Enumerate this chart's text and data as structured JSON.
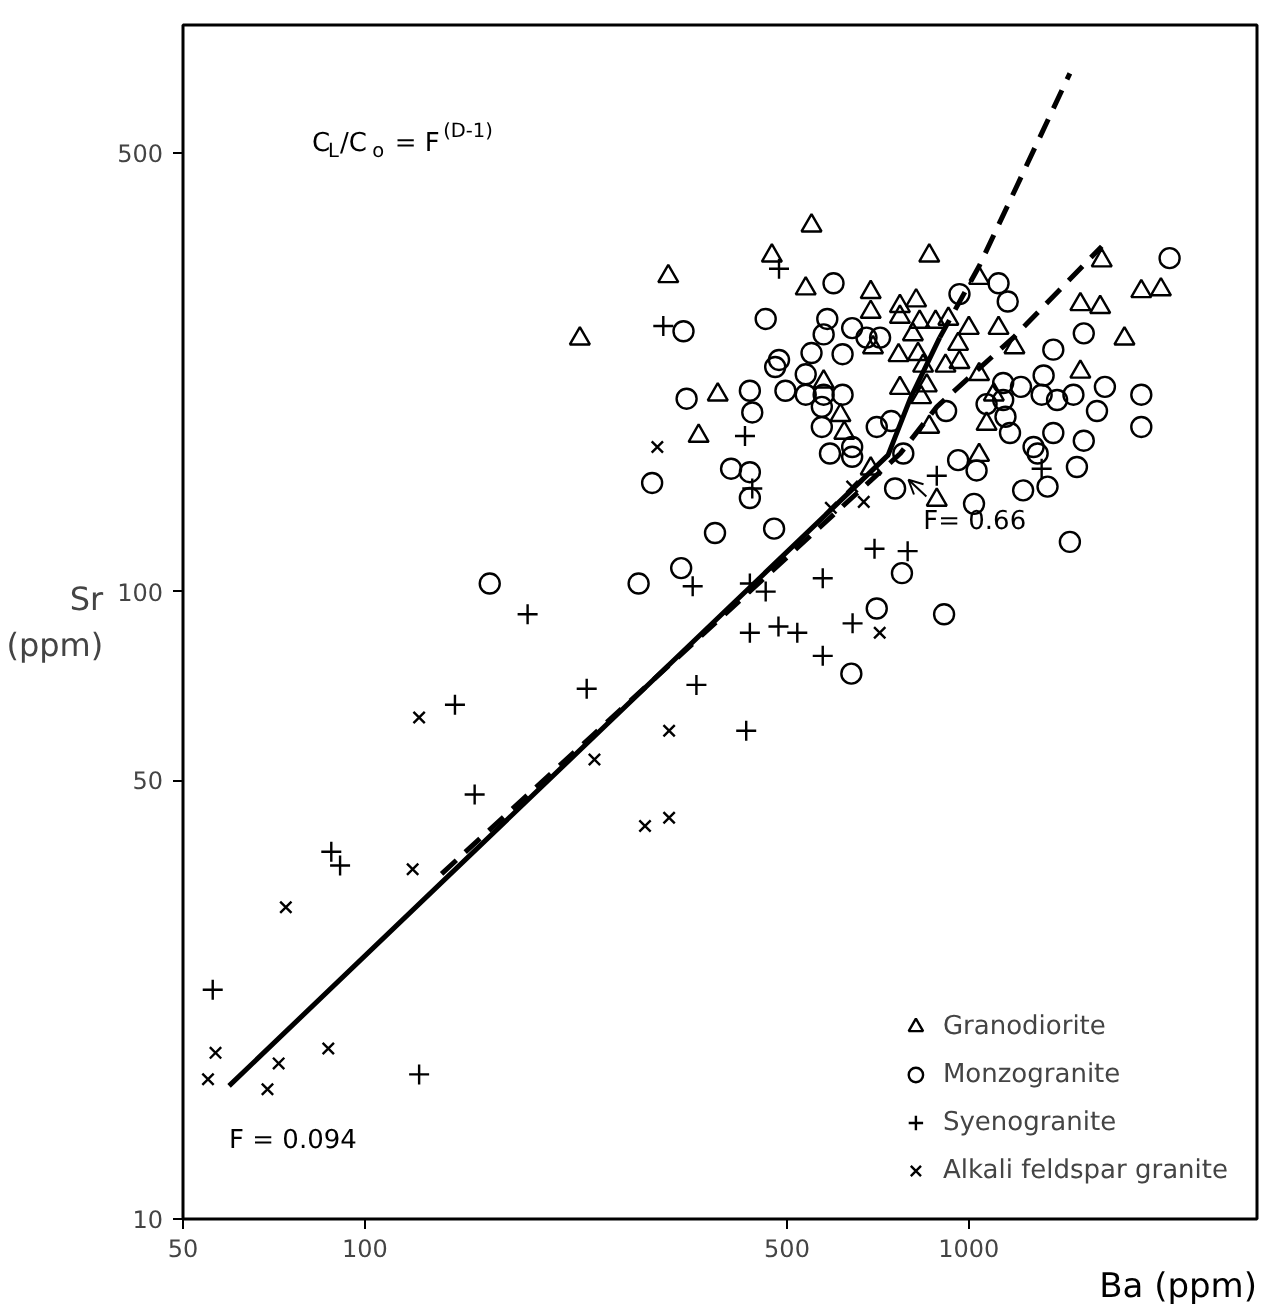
{
  "chart_data": {
    "type": "scatter",
    "xlabel": "Ba (ppm)",
    "ylabel": "Sr (ppm)",
    "log": "xy",
    "xlim": [
      50,
      3000
    ],
    "ylim": [
      10,
      800
    ],
    "xticks": [
      50,
      100,
      500,
      1000
    ],
    "yticks": [
      10,
      50,
      100,
      500
    ],
    "legend": "bottom right",
    "annotations": [
      "C$_{L}$/C$_{o}$ = F$^{(D-1)}$",
      {
        "text": "F= 0.66",
        "x": 779,
        "y": 157
      },
      {
        "text": "F = 0.094",
        "x": 59.6,
        "y": 16.3
      }
    ],
    "series": [
      {
        "name": "Granodiorite",
        "marker": "triangle",
        "color": "#000000",
        "x": [
          549,
          472,
          318,
          227,
          537,
          688,
          688,
          769,
          694,
          769,
          765,
          575,
          769,
          384,
          613,
          622,
          357,
          688,
          860,
          1040,
          1660,
          1930,
          2080,
          1530,
          1650,
          1810,
          1530,
          1040,
          1070,
          1040,
          1100,
          1120,
          1190,
          1000,
          960,
          965,
          915,
          818,
          829,
          808,
          881,
          925,
          824,
          840,
          834,
          852,
          860,
          885
        ],
        "values": [
          383,
          343,
          318,
          253,
          304,
          300,
          279,
          285,
          245,
          274,
          238,
          216,
          211,
          206,
          191,
          179,
          177,
          157,
          343,
          316,
          337,
          301,
          303,
          287,
          284,
          253,
          224,
          165,
          185,
          222,
          206,
          263,
          245,
          263,
          248,
          232,
          229,
          291,
          269,
          257,
          269,
          272,
          239,
          229,
          204,
          213,
          183,
          140
        ]
      },
      {
        "name": "Monzogranite",
        "marker": "circle",
        "color": "#000000",
        "x": [
          597,
          337,
          461,
          583,
          575,
          641,
          677,
          713,
          549,
          618,
          485,
          478,
          537,
          537,
          575,
          618,
          497,
          341,
          434,
          438,
          571,
          571,
          704,
          744,
          589,
          641,
          641,
          299,
          404,
          434,
          434,
          755,
          161,
          284,
          334,
          380,
          476,
          704,
          639,
          775,
          1120,
          965,
          1160,
          2150,
          1550,
          1380,
          1330,
          1320,
          1400,
          1490,
          1680,
          1930,
          1930,
          1630,
          1380,
          1550,
          1280,
          1300,
          1510,
          1350,
          1230,
          1030,
          960,
          1220,
          1140,
          1140,
          1070,
          1150,
          1170,
          779,
          917,
          1020,
          1470,
          910
        ],
        "values": [
          310,
          260,
          272,
          272,
          257,
          263,
          254,
          254,
          240,
          239,
          234,
          228,
          222,
          206,
          206,
          206,
          209,
          203,
          209,
          193,
          197,
          183,
          183,
          187,
          166,
          170,
          164,
          149,
          157,
          155,
          141,
          146,
          103,
          103,
          109,
          124,
          126,
          94,
          74,
          107,
          310,
          298,
          290,
          340,
          258,
          243,
          221,
          206,
          202,
          206,
          212,
          206,
          183,
          194,
          179,
          174,
          170,
          166,
          158,
          147,
          145,
          156,
          162,
          212,
          215,
          202,
          199,
          190,
          179,
          166,
          194,
          138,
          120,
          92
        ]
      },
      {
        "name": "Syenogranite",
        "marker": "cross",
        "color": "#000000",
        "x": [
          56,
          88,
          91,
          123,
          141,
          152,
          186,
          233,
          354,
          349,
          434,
          461,
          434,
          484,
          520,
          573,
          573,
          428,
          642,
          698,
          792,
          485,
          312,
          426,
          438,
          1320,
          885
        ],
        "values": [
          23.2,
          38.5,
          36.6,
          17,
          66,
          47.5,
          92,
          70,
          71,
          102,
          103,
          100,
          86,
          88,
          86,
          105,
          79,
          60,
          89,
          117,
          116,
          327,
          265,
          177,
          146,
          157,
          153
        ]
      },
      {
        "name": "Alkali feldspar granite",
        "marker": "x",
        "color": "#000000",
        "x": [
          56.6,
          55,
          69,
          72,
          74,
          87,
          120,
          123,
          240,
          291,
          319,
          319,
          712,
          591,
          670,
          305,
          641
        ],
        "values": [
          18.4,
          16.7,
          16.1,
          17.7,
          31.4,
          18.7,
          36.1,
          63,
          54,
          42.3,
          43.6,
          60,
          86,
          136,
          139,
          170,
          147
        ]
      },
      {
        "type": "line",
        "line_style": "solid",
        "marker": "none",
        "color": "#000000",
        "x": [
          59.6,
          735,
          800,
          895
        ],
        "values": [
          16.3,
          165,
          203,
          254
        ]
      },
      {
        "type": "line",
        "line_style": "dashed",
        "marker": "none",
        "color": "#000000",
        "x": [
          134,
          770,
          885,
          1190,
          1660
        ],
        "values": [
          35.5,
          166,
          197,
          255,
          355
        ]
      },
      {
        "type": "line",
        "line_style": "dashed",
        "marker": "none",
        "color": "#000000",
        "x": [
          895,
          1040,
          1470
        ],
        "values": [
          254,
          330,
          670
        ]
      }
    ]
  }
}
